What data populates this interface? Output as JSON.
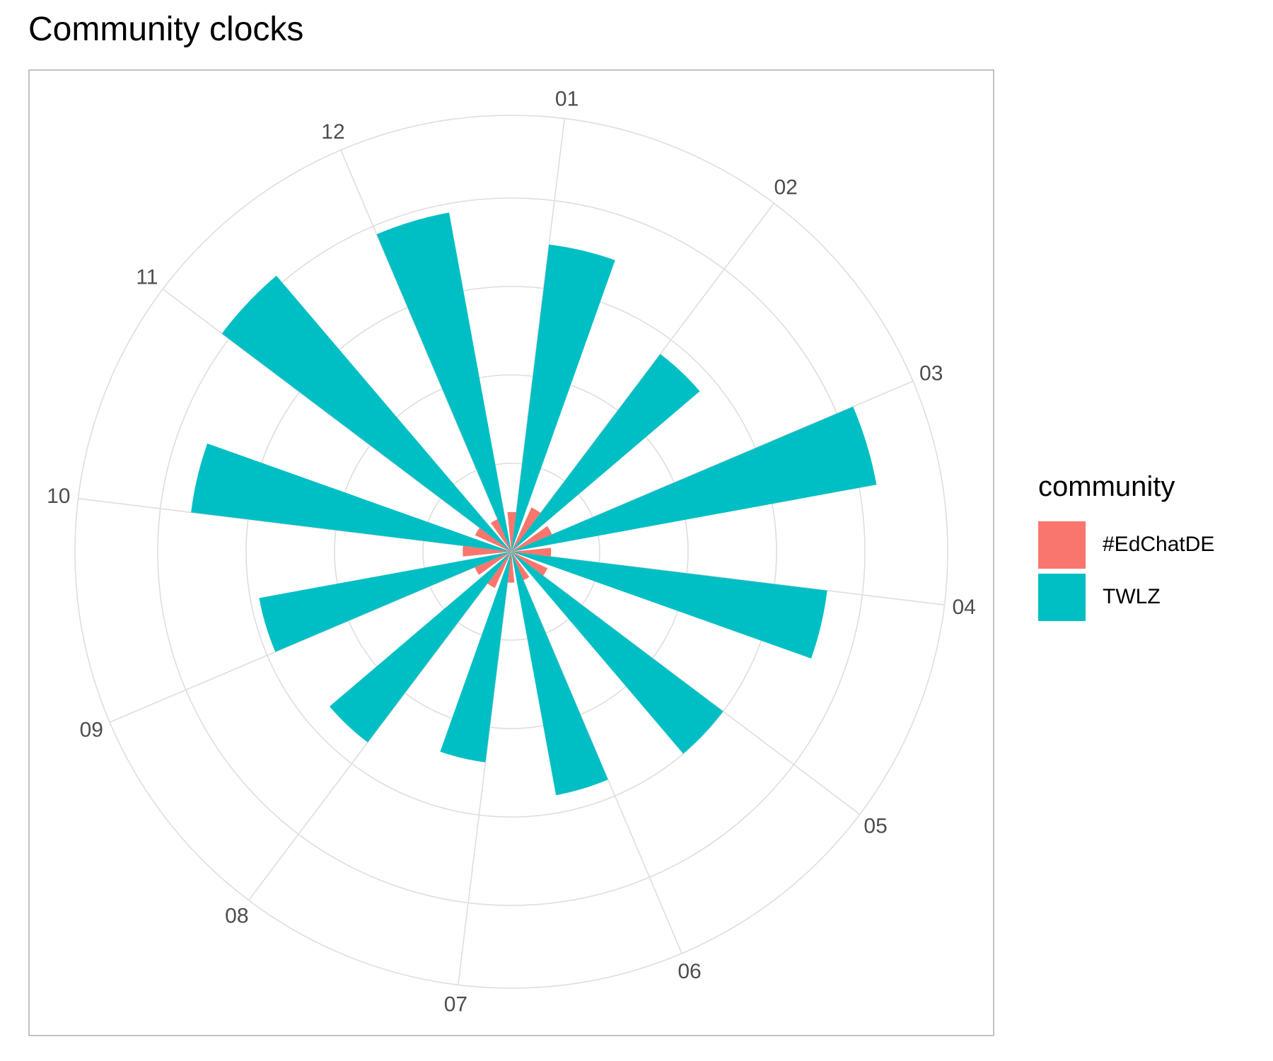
{
  "title": "Community clocks",
  "legend": {
    "title": "community",
    "items": [
      {
        "label": "#EdChatDE",
        "color": "#F8766D"
      },
      {
        "label": "TWLZ",
        "color": "#00BFC4"
      }
    ]
  },
  "chart_data": {
    "type": "bar",
    "coord": "polar",
    "title": "Community clocks",
    "categories": [
      "01",
      "02",
      "03",
      "04",
      "05",
      "06",
      "07",
      "08",
      "09",
      "10",
      "11",
      "12"
    ],
    "series": [
      {
        "name": "#EdChatDE",
        "color": "#F8766D",
        "values": [
          0.45,
          0.55,
          0.5,
          0.45,
          0.45,
          0.35,
          0.35,
          0.45,
          0.45,
          0.55,
          0.45,
          0.4
        ]
      },
      {
        "name": "TWLZ",
        "color": "#00BFC4",
        "values": [
          3.5,
          2.8,
          4.2,
          3.6,
          3.0,
          2.8,
          2.4,
          2.7,
          2.9,
          3.65,
          4.1,
          3.9
        ]
      }
    ],
    "stacked": false,
    "dodge": true,
    "gridlines": true,
    "legend_position": "right"
  }
}
